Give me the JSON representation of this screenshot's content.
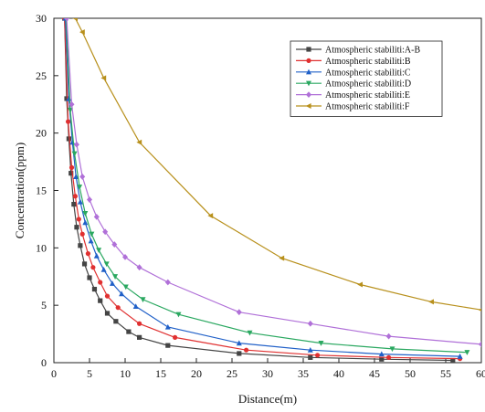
{
  "chart_data": {
    "type": "line",
    "xlabel": "Distance(m)",
    "ylabel": "Concentration(ppm)",
    "xlim": [
      0,
      60
    ],
    "ylim": [
      0,
      30
    ],
    "xticks": [
      0,
      5,
      10,
      15,
      20,
      25,
      30,
      35,
      40,
      45,
      50,
      55,
      60
    ],
    "yticks": [
      0,
      5,
      10,
      15,
      20,
      25,
      30
    ],
    "grid": false,
    "legend_position": "top-right",
    "series": [
      {
        "name": "Atmospheric stabiliti:A-B",
        "color": "#444444",
        "marker": "square",
        "x": [
          1.5,
          1.8,
          2.1,
          2.4,
          2.8,
          3.2,
          3.7,
          4.3,
          5.0,
          5.7,
          6.5,
          7.5,
          8.7,
          10.5,
          12.0,
          16.0,
          26.0,
          36.0,
          46.0,
          56.0
        ],
        "y": [
          30.0,
          23.0,
          19.5,
          16.5,
          13.8,
          11.8,
          10.2,
          8.6,
          7.4,
          6.4,
          5.4,
          4.3,
          3.6,
          2.7,
          2.2,
          1.5,
          0.8,
          0.45,
          0.3,
          0.2
        ]
      },
      {
        "name": "Atmospheric stabiliti:B",
        "color": "#e03030",
        "marker": "circle",
        "x": [
          1.5,
          2.0,
          2.5,
          3.0,
          3.5,
          4.0,
          4.8,
          5.5,
          6.5,
          7.5,
          9.0,
          12.0,
          17.0,
          27.0,
          37.0,
          47.0,
          57.0
        ],
        "y": [
          30.0,
          21.0,
          17.0,
          14.5,
          12.5,
          11.2,
          9.5,
          8.3,
          7.0,
          5.8,
          4.8,
          3.4,
          2.2,
          1.1,
          0.65,
          0.45,
          0.35
        ]
      },
      {
        "name": "Atmospheric stabiliti:C",
        "color": "#2060c8",
        "marker": "triangle",
        "x": [
          1.6,
          2.1,
          2.6,
          3.1,
          3.7,
          4.4,
          5.2,
          6.0,
          7.0,
          8.2,
          9.5,
          11.5,
          16.0,
          26.0,
          36.0,
          46.0,
          57.0
        ],
        "y": [
          30.0,
          23.0,
          19.2,
          16.2,
          14.0,
          12.2,
          10.6,
          9.3,
          8.1,
          6.9,
          6.0,
          4.9,
          3.1,
          1.7,
          1.1,
          0.75,
          0.55
        ]
      },
      {
        "name": "Atmospheric stabiliti:D",
        "color": "#2aa860",
        "marker": "triangle-down",
        "x": [
          1.7,
          2.3,
          2.9,
          3.6,
          4.4,
          5.3,
          6.3,
          7.4,
          8.6,
          10.1,
          12.5,
          17.5,
          27.5,
          37.5,
          47.5,
          58.0
        ],
        "y": [
          30.0,
          22.0,
          18.2,
          15.3,
          13.0,
          11.2,
          9.8,
          8.6,
          7.5,
          6.6,
          5.5,
          4.2,
          2.6,
          1.7,
          1.2,
          0.9
        ]
      },
      {
        "name": "Atmospheric stabiliti:E",
        "color": "#b070d8",
        "marker": "diamond",
        "x": [
          1.8,
          2.5,
          3.2,
          4.0,
          5.0,
          6.0,
          7.2,
          8.5,
          10.0,
          12.0,
          16.0,
          26.0,
          36.0,
          47.0,
          60.0
        ],
        "y": [
          30.0,
          22.5,
          19.0,
          16.2,
          14.2,
          12.7,
          11.4,
          10.3,
          9.2,
          8.3,
          7.0,
          4.4,
          3.4,
          2.3,
          1.6
        ]
      },
      {
        "name": "Atmospheric stabiliti:F",
        "color": "#b8901c",
        "marker": "triangle-left",
        "x": [
          3.0,
          4.0,
          7.0,
          12.0,
          22.0,
          32.0,
          43.0,
          53.0,
          60.0
        ],
        "y": [
          30.0,
          28.8,
          24.8,
          19.2,
          12.8,
          9.1,
          6.8,
          5.3,
          4.6
        ]
      }
    ]
  }
}
